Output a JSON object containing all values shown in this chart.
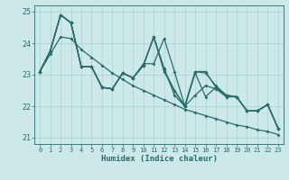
{
  "xlabel": "Humidex (Indice chaleur)",
  "xlim": [
    -0.5,
    23.5
  ],
  "ylim": [
    20.8,
    25.2
  ],
  "yticks": [
    21,
    22,
    23,
    24,
    25
  ],
  "xticks": [
    0,
    1,
    2,
    3,
    4,
    5,
    6,
    7,
    8,
    9,
    10,
    11,
    12,
    13,
    14,
    15,
    16,
    17,
    18,
    19,
    20,
    21,
    22,
    23
  ],
  "bg_color": "#cce8e8",
  "line_color": "#2a6b6b",
  "grid_color": "#aad0d0",
  "lines": [
    [
      23.1,
      23.75,
      24.9,
      24.65,
      23.25,
      23.25,
      22.6,
      22.55,
      23.05,
      22.9,
      23.35,
      23.35,
      24.15,
      23.1,
      22.0,
      23.1,
      23.1,
      22.6,
      22.3,
      22.3,
      21.85,
      21.85,
      22.05,
      21.3
    ],
    [
      23.1,
      23.75,
      24.9,
      24.65,
      23.25,
      23.25,
      22.6,
      22.55,
      23.05,
      22.9,
      23.3,
      24.2,
      23.2,
      22.35,
      22.0,
      22.35,
      22.65,
      22.55,
      22.3,
      22.3,
      21.85,
      21.85,
      22.05,
      21.3
    ],
    [
      23.1,
      23.75,
      24.9,
      24.65,
      23.25,
      23.25,
      22.6,
      22.55,
      23.05,
      22.9,
      23.3,
      24.2,
      23.15,
      22.5,
      22.0,
      23.1,
      23.05,
      22.65,
      22.35,
      22.3,
      21.85,
      21.85,
      22.05,
      21.3
    ],
    [
      23.1,
      23.75,
      24.9,
      24.65,
      23.25,
      23.25,
      22.6,
      22.55,
      23.05,
      22.9,
      23.3,
      24.2,
      23.1,
      22.5,
      22.0,
      23.05,
      22.3,
      22.6,
      22.35,
      22.3,
      21.85,
      21.85,
      22.05,
      21.3
    ]
  ],
  "straight_line": [
    23.1,
    23.65,
    24.2,
    24.15,
    23.8,
    23.55,
    23.3,
    23.05,
    22.85,
    22.65,
    22.5,
    22.35,
    22.2,
    22.05,
    21.9,
    21.8,
    21.7,
    21.6,
    21.5,
    21.4,
    21.35,
    21.25,
    21.2,
    21.1
  ]
}
